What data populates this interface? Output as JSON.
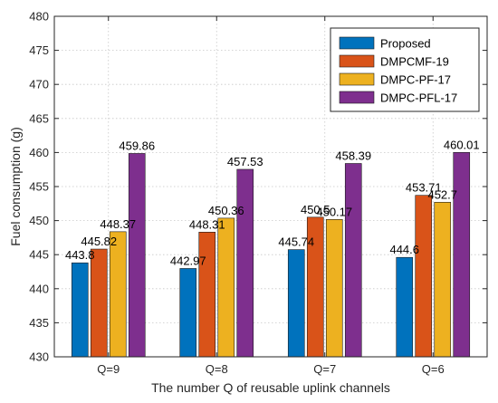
{
  "chart_data": {
    "type": "bar",
    "title": "",
    "xlabel": "The number Q of reusable uplink channels",
    "ylabel": "Fuel consumption (g)",
    "ylim": [
      430,
      480
    ],
    "yticks": [
      430,
      435,
      440,
      445,
      450,
      455,
      460,
      465,
      470,
      475,
      480
    ],
    "grid": true,
    "legend_position": "top-right",
    "categories": [
      "Q=9",
      "Q=8",
      "Q=7",
      "Q=6"
    ],
    "series": [
      {
        "name": "Proposed",
        "color": "#0072BD",
        "values": [
          443.8,
          442.97,
          445.74,
          444.6
        ]
      },
      {
        "name": "DMPCMF-19",
        "color": "#D95319",
        "values": [
          445.82,
          448.31,
          450.5,
          453.71
        ]
      },
      {
        "name": "DMPC-PF-17",
        "color": "#EDB120",
        "values": [
          448.37,
          450.36,
          450.17,
          452.7
        ]
      },
      {
        "name": "DMPC-PFL-17",
        "color": "#7E2F8E",
        "values": [
          459.86,
          457.53,
          458.39,
          460.01
        ]
      }
    ]
  }
}
